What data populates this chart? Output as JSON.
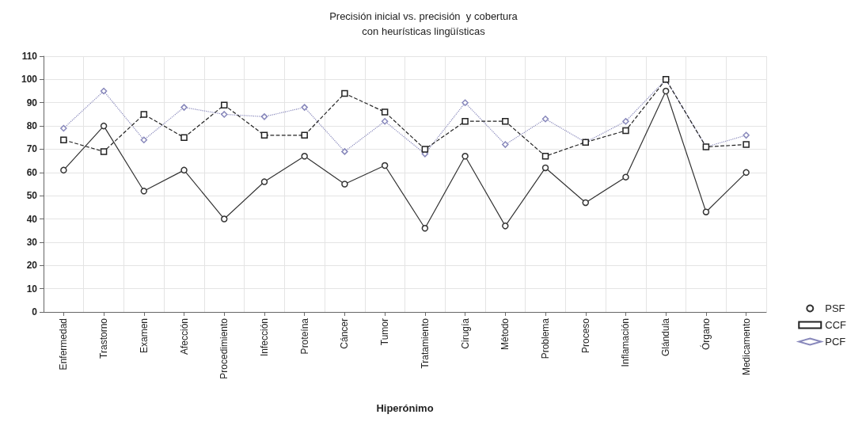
{
  "chart_data": {
    "type": "line",
    "title": "Precisión inicial vs. precisión  y cobertura\ncon heurísticas lingüísticas",
    "xlabel": "Hiperónimo",
    "categories": [
      "Enfermedad",
      "Trastorno",
      "Examen",
      "Afección",
      "Procedimiento",
      "Infección",
      "Proteína",
      "Cáncer",
      "Tumor",
      "Tratamiento",
      "Cirugía",
      "Método",
      "Problema",
      "Proceso",
      "Inflamación",
      "Glándula",
      "Órgano",
      "Medicamento"
    ],
    "series": [
      {
        "name": "PSF",
        "color": "#333333",
        "marker": "circle",
        "line_style": "solid",
        "values": [
          61,
          80,
          52,
          61,
          40,
          56,
          67,
          55,
          63,
          36,
          67,
          37,
          62,
          47,
          58,
          95,
          43,
          60
        ]
      },
      {
        "name": "CCF",
        "color": "#222222",
        "marker": "square",
        "line_style": "dashed",
        "values": [
          74,
          69,
          85,
          75,
          89,
          76,
          76,
          94,
          86,
          70,
          82,
          82,
          67,
          73,
          78,
          100,
          71,
          72
        ]
      },
      {
        "name": "PCF",
        "color": "#8888bb",
        "marker": "diamond",
        "line_style": "dotted",
        "values": [
          79,
          95,
          74,
          88,
          85,
          84,
          88,
          69,
          82,
          68,
          90,
          72,
          83,
          73,
          82,
          100,
          71,
          76
        ]
      }
    ],
    "ylim": [
      0,
      110
    ],
    "yticks": [
      0,
      10,
      20,
      30,
      40,
      50,
      60,
      70,
      80,
      90,
      100,
      110
    ],
    "grid": true,
    "legend": "bottom right"
  }
}
